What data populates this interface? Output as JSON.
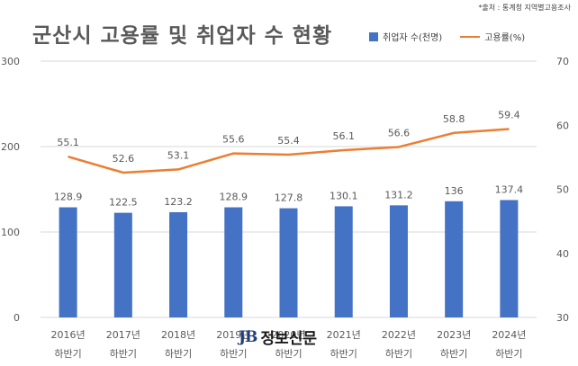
{
  "title": "군산시 고용률 및 취업자 수 현황",
  "source": "*출처 : 통계청 지역별고용조사",
  "watermark": {
    "logo": "JB",
    "text": "정보신문"
  },
  "colors": {
    "bar": "#4472C4",
    "line": "#ED7D31",
    "grid": "#d9d9d9",
    "text": "#595959"
  },
  "chart_data": {
    "type": "bar",
    "title": "군산시 고용률 및 취업자 수 현황",
    "categories": [
      [
        "2016년",
        "하반기"
      ],
      [
        "2017년",
        "하반기"
      ],
      [
        "2018년",
        "하반기"
      ],
      [
        "2019년",
        "하반기"
      ],
      [
        "2020년",
        "하반기"
      ],
      [
        "2021년",
        "하반기"
      ],
      [
        "2022년",
        "하반기"
      ],
      [
        "2023년",
        "하반기"
      ],
      [
        "2024년",
        "하반기"
      ]
    ],
    "series": [
      {
        "name": "취업자 수(천명)",
        "type": "bar",
        "axis": "left",
        "values": [
          128.9,
          122.5,
          123.2,
          128.9,
          127.8,
          130.1,
          131.2,
          136,
          137.4
        ],
        "labels": [
          "128.9",
          "122.5",
          "123.2",
          "128.9",
          "127.8",
          "130.1",
          "131.2",
          "136",
          "137.4"
        ]
      },
      {
        "name": "고용률(%)",
        "type": "line",
        "axis": "right",
        "values": [
          55.1,
          52.6,
          53.1,
          55.6,
          55.4,
          56.1,
          56.6,
          58.8,
          59.4
        ],
        "labels": [
          "55.1",
          "52.6",
          "53.1",
          "55.6",
          "55.4",
          "56.1",
          "56.6",
          "58.8",
          "59.4"
        ]
      }
    ],
    "y_left": {
      "lim": [
        0,
        300
      ],
      "ticks": [
        "0",
        "100",
        "200",
        "300"
      ]
    },
    "y_right": {
      "lim": [
        30,
        70
      ],
      "ticks": [
        "30",
        "40",
        "50",
        "60",
        "70"
      ]
    },
    "grid": true,
    "legend": "top-right"
  }
}
